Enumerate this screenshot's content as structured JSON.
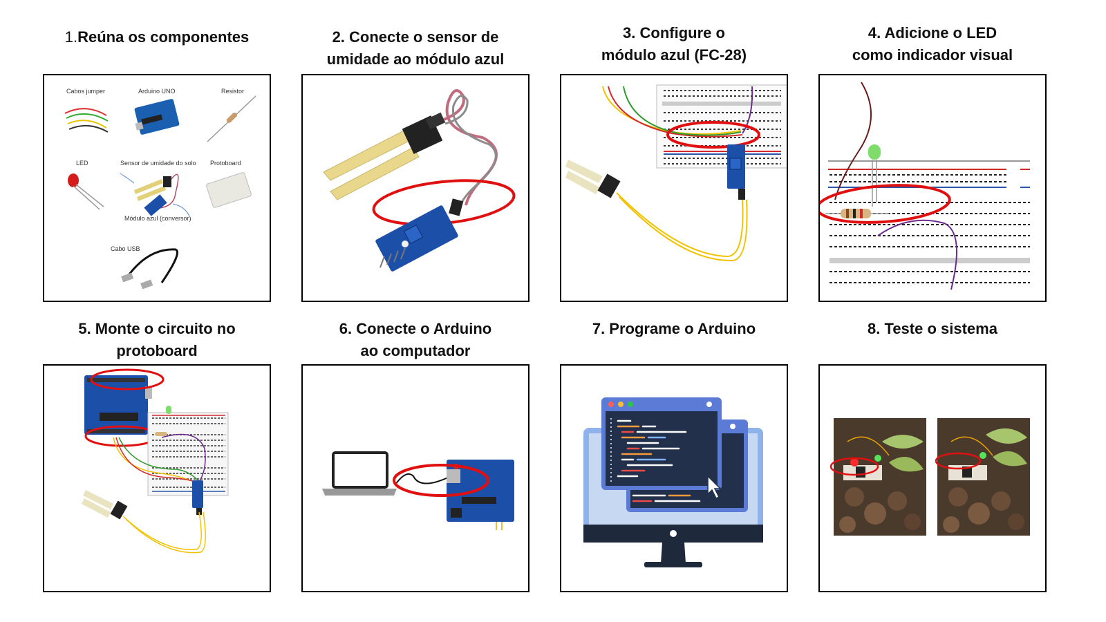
{
  "steps": [
    {
      "number": "1.",
      "title": "Reúna os componentes",
      "components": {
        "jumper": "Cabos jumper",
        "arduino": "Arduino UNO",
        "resistor": "Resistor",
        "led": "LED",
        "soil_sensor": "Sensor de umidade do solo",
        "protoboard": "Protoboard",
        "module": "Módulo azul (conversor)",
        "usb": "Cabo USB"
      }
    },
    {
      "title_line1": "2. Conecte o sensor de",
      "title_line2": "umidade ao módulo azul"
    },
    {
      "title_line1": "3. Configure o",
      "title_line2": "módulo azul (FC-28)"
    },
    {
      "title_line1": "4. Adicione o LED",
      "title_line2": "como indicador visual"
    },
    {
      "title_line1": "5. Monte o circuito no",
      "title_line2": "protoboard"
    },
    {
      "title_line1": "6. Conecte o Arduino",
      "title_line2": "ao computador"
    },
    {
      "title_line1": "7. Programe o Arduino"
    },
    {
      "title_line1": "8. Teste o sistema"
    }
  ],
  "colors": {
    "highlight": "#e01010",
    "module_blue": "#1c4fa8",
    "wire_yellow": "#f2c200",
    "wire_red": "#d22a2a",
    "wire_green": "#2e9a2e",
    "wire_purple": "#6b2a8c"
  }
}
